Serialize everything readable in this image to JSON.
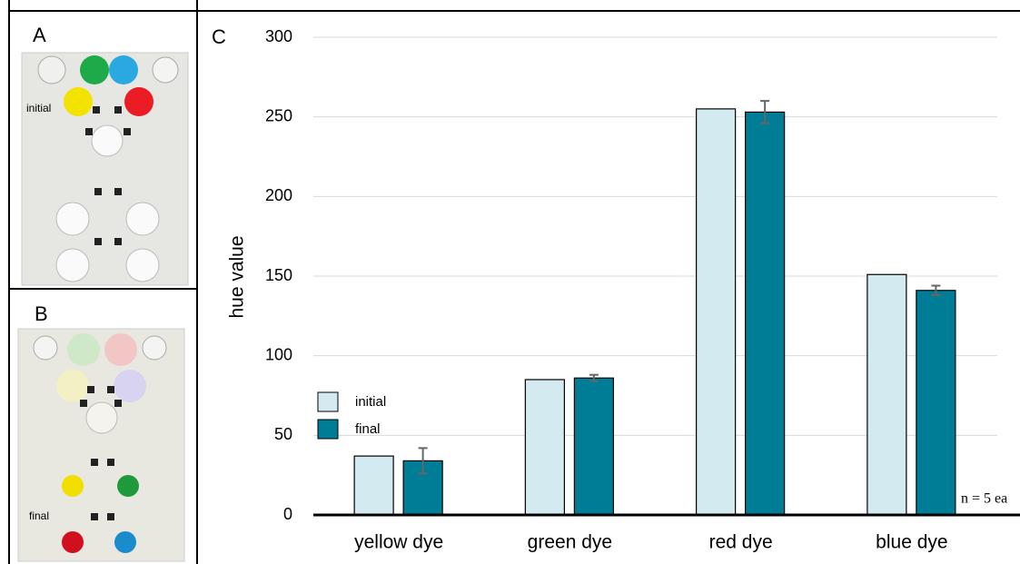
{
  "panels": {
    "a": {
      "label": "A",
      "photo_label": "initial"
    },
    "b": {
      "label": "B",
      "photo_label": "final"
    }
  },
  "chart_data": {
    "type": "bar",
    "panel_label": "C",
    "ylabel": "hue value",
    "categories": [
      "yellow dye",
      "green dye",
      "red dye",
      "blue dye"
    ],
    "series": [
      {
        "name": "initial",
        "color": "#d3ebf0",
        "values": [
          37,
          85,
          255,
          151
        ]
      },
      {
        "name": "final",
        "color": "#007d96",
        "values": [
          34,
          86,
          253,
          141
        ],
        "errors": [
          8,
          2,
          7,
          3
        ]
      }
    ],
    "ylim": [
      0,
      300
    ],
    "yticks": [
      0,
      50,
      100,
      150,
      200,
      250,
      300
    ],
    "grid": true,
    "annotation": "n = 5 ea",
    "legend": "lower-left"
  }
}
